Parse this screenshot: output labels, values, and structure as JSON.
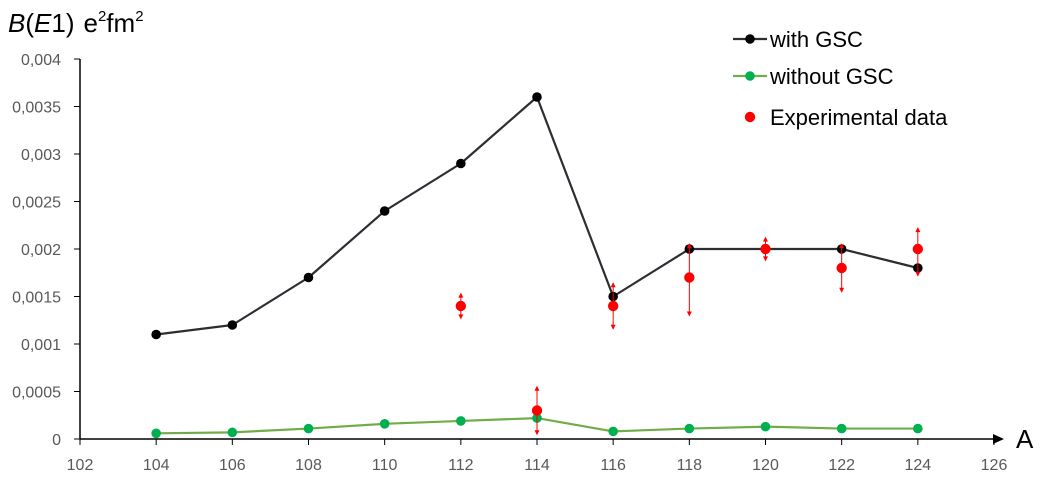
{
  "chart_data": {
    "type": "line",
    "title": "",
    "ylabel_parts": {
      "B": "B",
      "open": "(",
      "E": "E",
      "one": "1)",
      "e": "e",
      "e_sup": "2",
      "fm": "fm",
      "fm_sup": "2"
    },
    "xlabel": "A",
    "xlim": [
      102,
      126
    ],
    "ylim": [
      0,
      0.004
    ],
    "x_ticks": [
      "102",
      "104",
      "106",
      "108",
      "110",
      "112",
      "114",
      "116",
      "118",
      "120",
      "122",
      "124",
      "126"
    ],
    "y_ticks": [
      "0",
      "0,0005",
      "0,001",
      "0,0015",
      "0,002",
      "0,0025",
      "0,003",
      "0,0035",
      "0,004"
    ],
    "grid": false,
    "legend_position": "top-right",
    "series": [
      {
        "name": "with GSC",
        "style": "line-marker",
        "color": "#2b2f33",
        "marker_color": "#000000",
        "x": [
          104,
          106,
          108,
          110,
          112,
          114,
          116,
          118,
          120,
          122,
          124
        ],
        "y": [
          0.0011,
          0.0012,
          0.0017,
          0.0024,
          0.0029,
          0.0036,
          0.0015,
          0.002,
          0.002,
          0.002,
          0.0018
        ]
      },
      {
        "name": "without GSC",
        "style": "line-marker",
        "color": "#70ad47",
        "marker_color": "#00b050",
        "x": [
          104,
          106,
          108,
          110,
          112,
          114,
          116,
          118,
          120,
          122,
          124
        ],
        "y": [
          6e-05,
          7e-05,
          0.00011,
          0.00016,
          0.00019,
          0.00022,
          8e-05,
          0.00011,
          0.00013,
          0.00011,
          0.00011
        ]
      },
      {
        "name": "Experimental data",
        "style": "marker",
        "color": "#ff0000",
        "marker_color": "#ff0000",
        "x": [
          112,
          114,
          116,
          118,
          120,
          122,
          124
        ],
        "y": [
          0.0014,
          0.0003,
          0.0014,
          0.0017,
          0.002,
          0.0018,
          0.002
        ],
        "err_low": [
          0.00013,
          0.00025,
          0.00024,
          0.0004,
          0.00012,
          0.00025,
          0.00028
        ],
        "err_high": [
          0.00013,
          0.00025,
          0.00024,
          0.00035,
          0.00012,
          0.00025,
          0.00022
        ]
      }
    ]
  }
}
